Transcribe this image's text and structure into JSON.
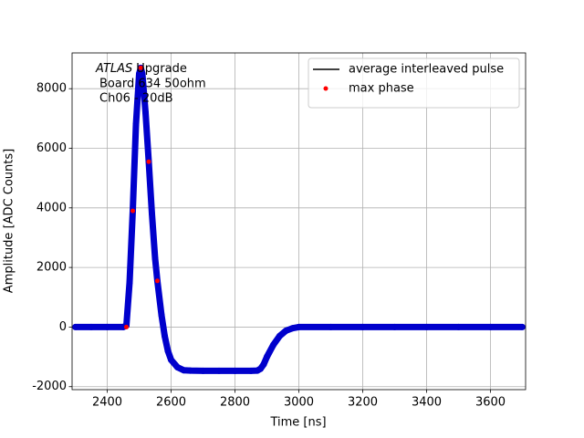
{
  "chart_data": {
    "type": "line",
    "xlabel": "Time [ns]",
    "ylabel": "Amplitude [ADC Counts]",
    "annotation": {
      "emphasis": "ATLAS",
      "text": "Upgrade",
      "lines": [
        "Board 634 50ohm",
        "Ch06 - 20dB"
      ]
    },
    "xlim": [
      2290,
      3710
    ],
    "ylim": [
      -2100,
      9200
    ],
    "xticks": [
      2400,
      2600,
      2800,
      3000,
      3200,
      3400,
      3600
    ],
    "yticks": [
      -2000,
      0,
      2000,
      4000,
      6000,
      8000
    ],
    "grid": true,
    "legend": "upper right",
    "series": [
      {
        "name": "average interleaved pulse",
        "color": "#000000",
        "style": "line",
        "x": [
          2300,
          2350,
          2400,
          2450,
          2460,
          2470,
          2480,
          2490,
          2500,
          2505,
          2510,
          2520,
          2530,
          2540,
          2550,
          2557,
          2570,
          2580,
          2590,
          2600,
          2620,
          2640,
          2660,
          2700,
          2750,
          2800,
          2850,
          2870,
          2880,
          2890,
          2900,
          2920,
          2940,
          2960,
          2980,
          3000,
          3100,
          3200,
          3300,
          3400,
          3500,
          3600,
          3700
        ],
        "values": [
          0,
          0,
          0,
          0,
          50,
          1500,
          3900,
          6800,
          8500,
          8700,
          8500,
          7200,
          5550,
          3800,
          2300,
          1550,
          400,
          -300,
          -800,
          -1100,
          -1350,
          -1450,
          -1460,
          -1470,
          -1470,
          -1470,
          -1470,
          -1460,
          -1400,
          -1250,
          -1000,
          -600,
          -300,
          -120,
          -40,
          0,
          0,
          0,
          0,
          0,
          0,
          0,
          0
        ]
      },
      {
        "color": "#0000cc",
        "style": "thick-dots",
        "x": [
          2300,
          2350,
          2400,
          2450,
          2460,
          2470,
          2480,
          2490,
          2500,
          2505,
          2510,
          2520,
          2530,
          2540,
          2550,
          2557,
          2570,
          2580,
          2590,
          2600,
          2620,
          2640,
          2660,
          2700,
          2750,
          2800,
          2850,
          2870,
          2880,
          2890,
          2900,
          2920,
          2940,
          2960,
          2980,
          3000,
          3100,
          3200,
          3300,
          3400,
          3500,
          3600,
          3700
        ],
        "values": [
          0,
          0,
          0,
          0,
          50,
          1500,
          3900,
          6800,
          8500,
          8700,
          8500,
          7200,
          5550,
          3800,
          2300,
          1550,
          400,
          -300,
          -800,
          -1100,
          -1350,
          -1450,
          -1460,
          -1470,
          -1470,
          -1470,
          -1470,
          -1460,
          -1400,
          -1250,
          -1000,
          -600,
          -300,
          -120,
          -40,
          0,
          0,
          0,
          0,
          0,
          0,
          0,
          0
        ]
      },
      {
        "name": "max phase",
        "color": "#ff0000",
        "style": "dots",
        "x": [
          2460,
          2480,
          2505,
          2530,
          2557
        ],
        "values": [
          0,
          3900,
          8700,
          5550,
          1550
        ]
      }
    ]
  }
}
